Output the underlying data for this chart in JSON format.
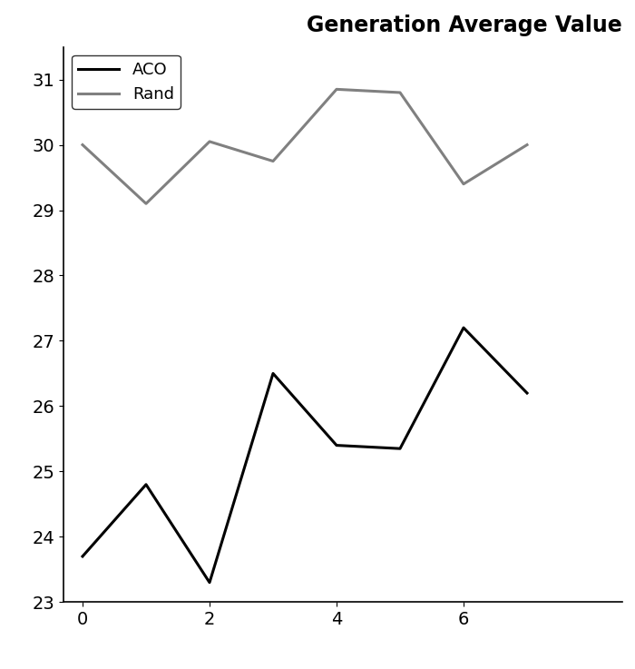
{
  "aco_x": [
    0,
    1,
    2,
    3,
    4,
    5,
    6,
    7
  ],
  "aco_y": [
    23.7,
    24.8,
    23.3,
    26.5,
    25.4,
    25.35,
    27.2,
    26.2
  ],
  "rand_x": [
    0,
    1,
    2,
    3,
    4,
    5,
    6,
    7
  ],
  "rand_y": [
    30.0,
    29.1,
    30.05,
    29.75,
    30.85,
    30.8,
    29.4,
    30.0
  ],
  "aco_color": "#000000",
  "rand_color": "#808080",
  "aco_label": "ACO",
  "rand_label": "Rand",
  "title": "Generation Average Value",
  "title_fontsize": 17,
  "ylim": [
    23,
    31.5
  ],
  "xlim": [
    -0.3,
    8.5
  ],
  "yticks": [
    23,
    24,
    25,
    26,
    27,
    28,
    29,
    30,
    31
  ],
  "xticks": [
    0,
    2,
    4,
    6
  ],
  "line_width": 2.2,
  "legend_fontsize": 13,
  "tick_fontsize": 14,
  "background_color": "#ffffff"
}
